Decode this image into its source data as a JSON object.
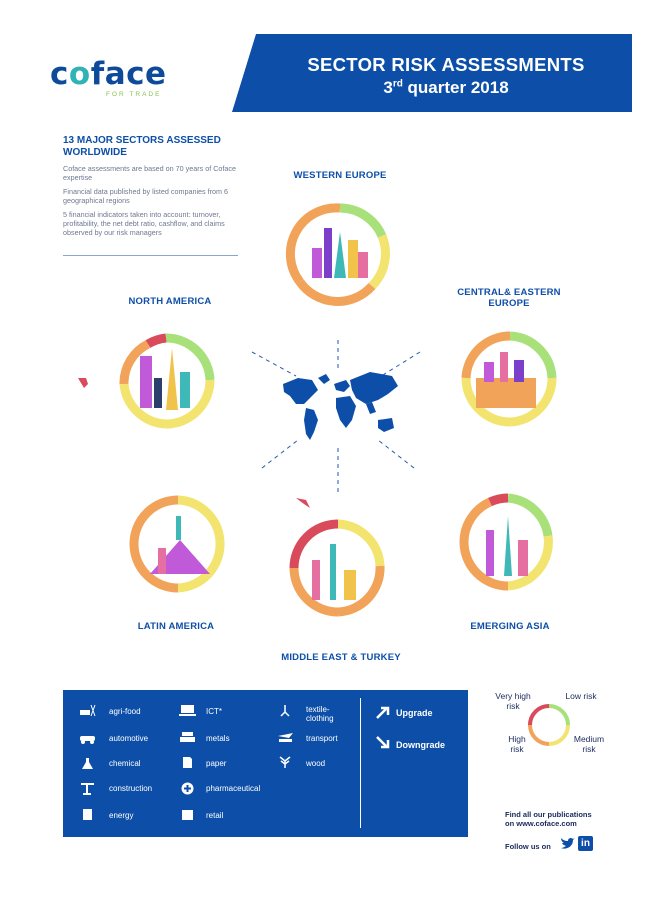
{
  "brand": {
    "name_start": "c",
    "name_o": "o",
    "name_end": "face",
    "tagline": "FOR TRADE"
  },
  "banner": {
    "title": "SECTOR RISK ASSESSMENTS",
    "quarter_num": "3",
    "quarter_sup": "rd",
    "quarter_rest": " quarter 2018"
  },
  "intro": {
    "heading": "13 MAJOR SECTORS ASSESSED WORLDWIDE",
    "p1": "Coface assessments are based on 70 years of Coface expertise",
    "p2": "Financial data published by listed companies from 6 geographical regions",
    "p3": "5 financial indicators taken into account: turnover, profitability, the net debt ratio, cashflow, and claims observed by our risk managers"
  },
  "regions": {
    "western_europe": "WESTERN EUROPE",
    "north_america": "NORTH AMERICA",
    "central_eastern_europe": "CENTRAL& EASTERN EUROPE",
    "latin_america": "LATIN AMERICA",
    "middle_east_turkey": "MIDDLE EAST & TURKEY",
    "emerging_asia": "EMERGING ASIA"
  },
  "legend": {
    "items": {
      "agri_food": "agri-food",
      "automotive": "automotive",
      "chemical": "chemical",
      "construction": "construction",
      "energy": "energy",
      "ict": "ICT*",
      "metals": "metals",
      "paper": "paper",
      "pharmaceutical": "pharmaceutical",
      "retail": "retail",
      "textile_clothing": "textile-clothing",
      "transport": "transport",
      "wood": "wood"
    },
    "upgrade": "Upgrade",
    "downgrade": "Downgrade"
  },
  "risk_scale": {
    "very_high": "Very high risk",
    "low": "Low risk",
    "high": "High risk",
    "medium": "Medium risk"
  },
  "footer": {
    "pubs_line1": "Find all our publications",
    "pubs_line2": "on  www.coface.com",
    "follow": "Follow us on",
    "linkedin": "in"
  },
  "colors": {
    "blue": "#0d4fa8",
    "low": "#a8e07a",
    "medium": "#f2e46f",
    "high": "#f2a35a",
    "very_high": "#d94a5a",
    "grey_icon": "#6e7891"
  }
}
